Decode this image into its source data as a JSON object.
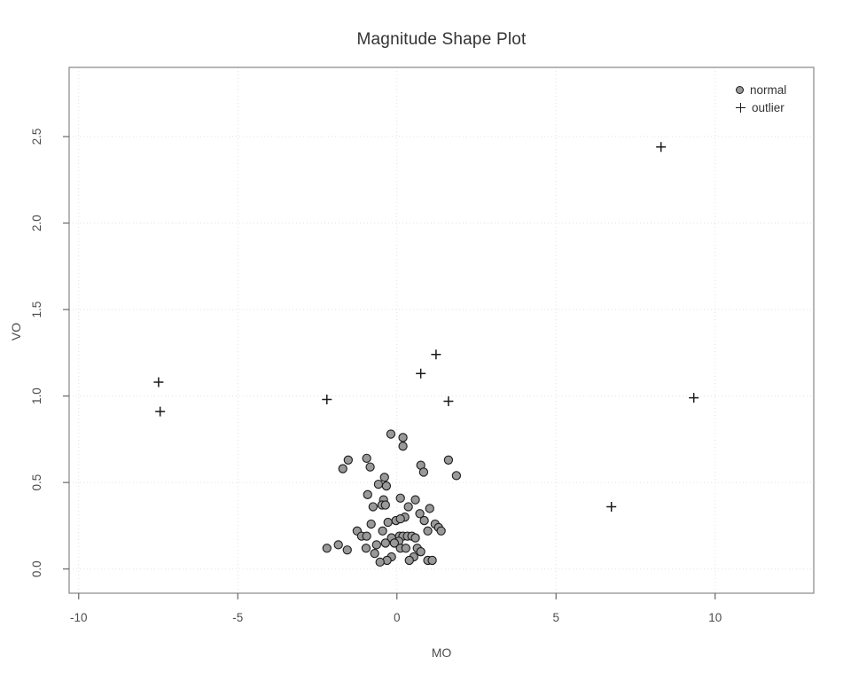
{
  "chart_data": {
    "type": "scatter",
    "title": "Magnitude Shape Plot",
    "xlabel": "MO",
    "ylabel": "VO",
    "xlim": [
      -10.3,
      13.1
    ],
    "ylim": [
      -0.14,
      2.9
    ],
    "xticks": [
      -10,
      -5,
      0,
      5,
      10
    ],
    "xtick_labels": [
      "-10",
      "-5",
      "0",
      "5",
      "10"
    ],
    "yticks": [
      0.0,
      0.5,
      1.0,
      1.5,
      2.0,
      2.5
    ],
    "ytick_labels": [
      "0.0",
      "0.5",
      "1.0",
      "1.5",
      "2.0",
      "2.5"
    ],
    "grid": true,
    "legend_position": "top-right",
    "legend": [
      {
        "label": "normal",
        "marker": "circle"
      },
      {
        "label": "outlier",
        "marker": "plus"
      }
    ],
    "colors": {
      "point_fill": "#999999",
      "point_stroke": "#1a1a1a",
      "grid": "#e1e1e1",
      "box": "#878787",
      "tick": "#666666",
      "tick_text": "#4d4d4d",
      "title_text": "#333333"
    },
    "series": [
      {
        "name": "normal",
        "marker": "circle",
        "points": [
          [
            -0.19,
            0.78
          ],
          [
            0.19,
            0.76
          ],
          [
            0.19,
            0.71
          ],
          [
            -1.53,
            0.63
          ],
          [
            -0.95,
            0.64
          ],
          [
            -0.84,
            0.59
          ],
          [
            -1.7,
            0.58
          ],
          [
            0.75,
            0.6
          ],
          [
            0.84,
            0.56
          ],
          [
            1.62,
            0.63
          ],
          [
            1.87,
            0.54
          ],
          [
            -0.39,
            0.53
          ],
          [
            -0.58,
            0.49
          ],
          [
            -0.33,
            0.48
          ],
          [
            -0.92,
            0.43
          ],
          [
            -0.42,
            0.4
          ],
          [
            0.11,
            0.41
          ],
          [
            0.58,
            0.4
          ],
          [
            -0.75,
            0.36
          ],
          [
            -0.47,
            0.37
          ],
          [
            -0.36,
            0.37
          ],
          [
            0.36,
            0.36
          ],
          [
            0.72,
            0.32
          ],
          [
            1.03,
            0.35
          ],
          [
            0.25,
            0.3
          ],
          [
            -0.03,
            0.28
          ],
          [
            -0.28,
            0.27
          ],
          [
            0.11,
            0.29
          ],
          [
            0.86,
            0.28
          ],
          [
            1.2,
            0.26
          ],
          [
            1.31,
            0.24
          ],
          [
            0.97,
            0.22
          ],
          [
            1.39,
            0.22
          ],
          [
            -0.81,
            0.26
          ],
          [
            -1.25,
            0.22
          ],
          [
            -1.11,
            0.19
          ],
          [
            -0.95,
            0.19
          ],
          [
            -0.45,
            0.22
          ],
          [
            -0.17,
            0.18
          ],
          [
            0.08,
            0.19
          ],
          [
            0.19,
            0.19
          ],
          [
            0.33,
            0.19
          ],
          [
            0.47,
            0.19
          ],
          [
            0.58,
            0.18
          ],
          [
            0.06,
            0.16
          ],
          [
            -0.08,
            0.15
          ],
          [
            -0.36,
            0.15
          ],
          [
            -0.64,
            0.14
          ],
          [
            -0.97,
            0.12
          ],
          [
            -1.84,
            0.14
          ],
          [
            -2.2,
            0.12
          ],
          [
            -1.56,
            0.11
          ],
          [
            0.11,
            0.12
          ],
          [
            0.28,
            0.12
          ],
          [
            0.64,
            0.12
          ],
          [
            0.75,
            0.1
          ],
          [
            0.53,
            0.07
          ],
          [
            0.39,
            0.05
          ],
          [
            -0.17,
            0.07
          ],
          [
            -0.31,
            0.05
          ],
          [
            -0.7,
            0.09
          ],
          [
            -0.53,
            0.04
          ],
          [
            0.97,
            0.05
          ],
          [
            1.11,
            0.05
          ]
        ]
      },
      {
        "name": "outlier",
        "marker": "plus",
        "points": [
          [
            -7.49,
            1.08
          ],
          [
            -7.44,
            0.91
          ],
          [
            -2.2,
            0.98
          ],
          [
            0.75,
            1.13
          ],
          [
            1.23,
            1.24
          ],
          [
            1.62,
            0.97
          ],
          [
            6.74,
            0.36
          ],
          [
            8.3,
            2.44
          ],
          [
            9.33,
            0.99
          ]
        ]
      }
    ]
  }
}
